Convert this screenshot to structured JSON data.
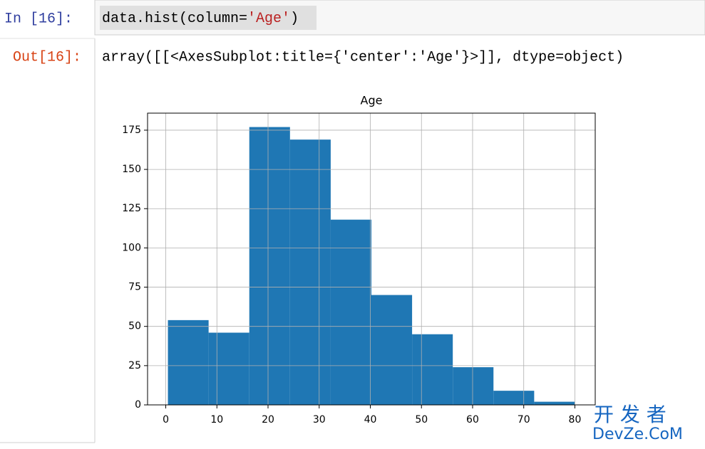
{
  "input": {
    "prompt": "In  [16]:",
    "code": [
      "data.hist(column=",
      "'Age'",
      ")"
    ]
  },
  "output": {
    "prompt": "Out[16]:",
    "text": "array([[<AxesSubplot:title={'center':'Age'}>]], dtype=object)"
  },
  "chart_data": {
    "type": "histogram",
    "title": "Age",
    "bins": [
      0.42,
      8.378,
      16.336,
      24.294,
      32.252,
      40.21,
      48.168,
      56.126,
      64.084,
      72.042,
      80
    ],
    "values": [
      54,
      46,
      177,
      169,
      118,
      70,
      45,
      24,
      9,
      2
    ],
    "color": "#1f77b4",
    "xlim": [
      -3.559,
      83.979
    ],
    "xticks": [
      0,
      10,
      20,
      30,
      40,
      50,
      60,
      70,
      80
    ],
    "ylim": [
      0,
      185.85
    ],
    "yticks": [
      0,
      25,
      50,
      75,
      100,
      125,
      150,
      175
    ],
    "grid": true
  },
  "watermark": {
    "line1": "开 发 者",
    "line2": "DevZe.CoM"
  }
}
